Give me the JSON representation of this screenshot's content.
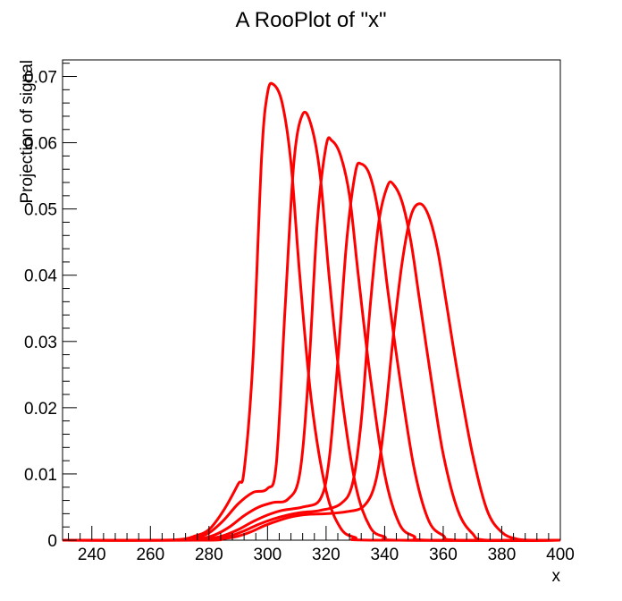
{
  "chart_data": {
    "type": "line",
    "title": "A RooPlot of \"x\"",
    "xlabel": "x",
    "ylabel": "Projection of signal",
    "xlim": [
      230,
      400
    ],
    "ylim": [
      0,
      0.0725
    ],
    "x_ticks": [
      240,
      260,
      280,
      300,
      320,
      340,
      360,
      380,
      400
    ],
    "x_tick_labels": [
      "240",
      "260",
      "280",
      "300",
      "320",
      "340",
      "360",
      "380",
      "400"
    ],
    "y_ticks": [
      0,
      0.01,
      0.02,
      0.03,
      0.04,
      0.05,
      0.06,
      0.07
    ],
    "y_tick_labels": [
      "0",
      "0.01",
      "0.02",
      "0.03",
      "0.04",
      "0.05",
      "0.06",
      "0.07"
    ],
    "grid": false,
    "legend": "none",
    "line_color": "#ff0000",
    "series": [
      {
        "points": [
          [
            230,
            0
          ],
          [
            260,
            0
          ],
          [
            270,
            0.0001
          ],
          [
            275,
            0.0006
          ],
          [
            280,
            0.0016
          ],
          [
            285,
            0.0045
          ],
          [
            290,
            0.0085
          ],
          [
            292,
            0.0105
          ],
          [
            295,
            0.027
          ],
          [
            298,
            0.058
          ],
          [
            300,
            0.0675
          ],
          [
            302,
            0.0688
          ],
          [
            305,
            0.066
          ],
          [
            308,
            0.057
          ],
          [
            311,
            0.04
          ],
          [
            315,
            0.021
          ],
          [
            320,
            0.0075
          ],
          [
            325,
            0.0018
          ],
          [
            330,
            0.0004
          ],
          [
            335,
            0
          ],
          [
            400,
            0
          ]
        ]
      },
      {
        "points": [
          [
            230,
            0
          ],
          [
            270,
            0
          ],
          [
            275,
            0.0003
          ],
          [
            280,
            0.0011
          ],
          [
            285,
            0.003
          ],
          [
            290,
            0.0055
          ],
          [
            295,
            0.0072
          ],
          [
            300,
            0.0078
          ],
          [
            303,
            0.0115
          ],
          [
            306,
            0.035
          ],
          [
            309,
            0.057
          ],
          [
            312,
            0.0643
          ],
          [
            315,
            0.0625
          ],
          [
            318,
            0.055
          ],
          [
            321,
            0.04
          ],
          [
            325,
            0.023
          ],
          [
            330,
            0.0085
          ],
          [
            335,
            0.002
          ],
          [
            340,
            0.0005
          ],
          [
            345,
            0
          ],
          [
            400,
            0
          ]
        ]
      },
      {
        "points": [
          [
            230,
            0
          ],
          [
            272,
            0
          ],
          [
            277,
            0.0002
          ],
          [
            282,
            0.0008
          ],
          [
            287,
            0.002
          ],
          [
            292,
            0.0037
          ],
          [
            297,
            0.005
          ],
          [
            302,
            0.0057
          ],
          [
            307,
            0.0062
          ],
          [
            311,
            0.01
          ],
          [
            314,
            0.025
          ],
          [
            317,
            0.048
          ],
          [
            320,
            0.0595
          ],
          [
            322,
            0.0603
          ],
          [
            325,
            0.058
          ],
          [
            328,
            0.052
          ],
          [
            331,
            0.04
          ],
          [
            335,
            0.025
          ],
          [
            340,
            0.01
          ],
          [
            345,
            0.0025
          ],
          [
            350,
            0.0006
          ],
          [
            355,
            0
          ],
          [
            400,
            0
          ]
        ]
      },
      {
        "points": [
          [
            230,
            0
          ],
          [
            275,
            0
          ],
          [
            280,
            0.0002
          ],
          [
            285,
            0.0007
          ],
          [
            290,
            0.0016
          ],
          [
            295,
            0.0028
          ],
          [
            300,
            0.0038
          ],
          [
            305,
            0.0045
          ],
          [
            312,
            0.005
          ],
          [
            318,
            0.0062
          ],
          [
            321,
            0.012
          ],
          [
            324,
            0.027
          ],
          [
            327,
            0.045
          ],
          [
            330,
            0.0555
          ],
          [
            332,
            0.0568
          ],
          [
            335,
            0.055
          ],
          [
            338,
            0.049
          ],
          [
            341,
            0.038
          ],
          [
            345,
            0.025
          ],
          [
            350,
            0.011
          ],
          [
            355,
            0.003
          ],
          [
            360,
            0.0007
          ],
          [
            365,
            0
          ],
          [
            400,
            0
          ]
        ]
      },
      {
        "points": [
          [
            230,
            0
          ],
          [
            277,
            0
          ],
          [
            282,
            0.0002
          ],
          [
            287,
            0.0006
          ],
          [
            292,
            0.0014
          ],
          [
            297,
            0.0024
          ],
          [
            302,
            0.0032
          ],
          [
            307,
            0.0038
          ],
          [
            312,
            0.0042
          ],
          [
            318,
            0.0045
          ],
          [
            325,
            0.0055
          ],
          [
            329,
            0.0085
          ],
          [
            332,
            0.018
          ],
          [
            335,
            0.035
          ],
          [
            338,
            0.048
          ],
          [
            341,
            0.0535
          ],
          [
            343,
            0.0537
          ],
          [
            346,
            0.051
          ],
          [
            349,
            0.045
          ],
          [
            352,
            0.036
          ],
          [
            356,
            0.024
          ],
          [
            360,
            0.013
          ],
          [
            365,
            0.0045
          ],
          [
            370,
            0.001
          ],
          [
            375,
            0
          ],
          [
            400,
            0
          ]
        ]
      },
      {
        "points": [
          [
            230,
            0
          ],
          [
            279,
            0
          ],
          [
            284,
            0.0002
          ],
          [
            289,
            0.0005
          ],
          [
            294,
            0.0012
          ],
          [
            299,
            0.0022
          ],
          [
            304,
            0.003
          ],
          [
            309,
            0.0036
          ],
          [
            314,
            0.0039
          ],
          [
            320,
            0.004
          ],
          [
            327,
            0.0043
          ],
          [
            333,
            0.0052
          ],
          [
            337,
            0.009
          ],
          [
            340,
            0.018
          ],
          [
            343,
            0.031
          ],
          [
            346,
            0.042
          ],
          [
            349,
            0.049
          ],
          [
            352,
            0.0508
          ],
          [
            355,
            0.049
          ],
          [
            358,
            0.044
          ],
          [
            361,
            0.036
          ],
          [
            365,
            0.025
          ],
          [
            370,
            0.013
          ],
          [
            375,
            0.0045
          ],
          [
            380,
            0.0012
          ],
          [
            385,
            0.0002
          ],
          [
            390,
            0
          ],
          [
            400,
            0
          ]
        ]
      }
    ]
  }
}
